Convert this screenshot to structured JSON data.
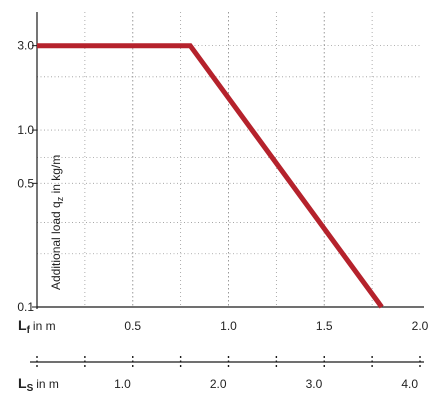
{
  "colors": {
    "line": "#b5222c",
    "grid": "#9a9a9a",
    "axis": "#1a1a1a",
    "text": "#222222"
  },
  "chart_data": {
    "type": "line",
    "title": "",
    "y_scale": "log",
    "ylabel": "Additional load q_z in kg/m",
    "ylabel_parts": {
      "before": "Additional load q",
      "sub": "z",
      "after": " in kg/m"
    },
    "ylim": [
      0.1,
      4.3
    ],
    "yticks": [
      {
        "value": 3.0,
        "label": "3.0"
      },
      {
        "value": 1.0,
        "label": "1.0"
      },
      {
        "value": 0.5,
        "label": "0.5"
      },
      {
        "value": 0.1,
        "label": "0.1"
      }
    ],
    "y_extra_gridlines": [
      2.0,
      0.7,
      0.3,
      0.2
    ],
    "x": {
      "label_main": "L",
      "label_sub": "f",
      "label_unit": "in m",
      "xlim": [
        0,
        2.0
      ],
      "ticks": [
        {
          "value": 0.5,
          "label": "0.5"
        },
        {
          "value": 1.0,
          "label": "1.0"
        },
        {
          "value": 1.5,
          "label": "1.5"
        },
        {
          "value": 2.0,
          "label": "2.0"
        }
      ],
      "minor_gridlines": [
        0.25,
        0.75,
        1.25,
        1.75
      ]
    },
    "x2": {
      "label_main": "L",
      "label_sub": "S",
      "label_unit": "in m",
      "xlim": [
        0,
        4.0
      ],
      "ticks": [
        {
          "value": 1.0,
          "label": "1.0"
        },
        {
          "value": 2.0,
          "label": "2.0"
        },
        {
          "value": 3.0,
          "label": "3.0"
        },
        {
          "value": 4.0,
          "label": "4.0"
        }
      ],
      "minor_ticks": [
        0.5,
        1.5,
        2.5,
        3.5
      ]
    },
    "series": [
      {
        "points": [
          {
            "x": 0,
            "y": 3.0
          },
          {
            "x": 0.8,
            "y": 3.0
          },
          {
            "x": 1.8,
            "y": 0.1
          }
        ]
      }
    ]
  }
}
